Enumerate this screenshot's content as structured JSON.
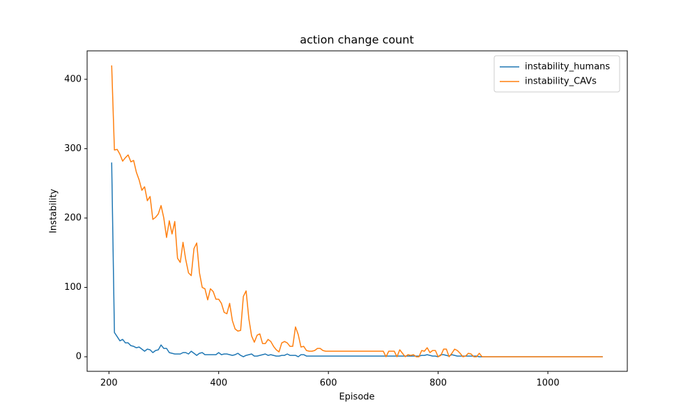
{
  "chart_data": {
    "type": "line",
    "title": "action change count",
    "x_label": "Episode",
    "y_label": "Instability",
    "x": [
      205,
      210,
      215,
      220,
      225,
      230,
      235,
      240,
      245,
      250,
      255,
      260,
      265,
      270,
      275,
      280,
      285,
      290,
      295,
      300,
      305,
      310,
      315,
      320,
      325,
      330,
      335,
      340,
      345,
      350,
      355,
      360,
      365,
      370,
      375,
      380,
      385,
      390,
      395,
      400,
      405,
      410,
      415,
      420,
      425,
      430,
      435,
      440,
      445,
      450,
      455,
      460,
      465,
      470,
      475,
      480,
      485,
      490,
      495,
      500,
      505,
      510,
      515,
      520,
      525,
      530,
      535,
      540,
      545,
      550,
      555,
      560,
      565,
      570,
      575,
      580,
      585,
      590,
      595,
      700,
      705,
      710,
      715,
      720,
      725,
      730,
      735,
      740,
      745,
      750,
      755,
      760,
      765,
      770,
      775,
      780,
      785,
      790,
      795,
      800,
      805,
      810,
      815,
      820,
      825,
      830,
      835,
      840,
      845,
      850,
      855,
      860,
      865,
      870,
      875,
      880,
      1100
    ],
    "series": [
      {
        "name": "instability_humans",
        "color": "#1f77b4",
        "values": [
          280,
          35,
          29,
          23,
          25,
          20,
          20,
          16,
          15,
          13,
          14,
          11,
          8,
          11,
          10,
          6,
          9,
          10,
          17,
          12,
          12,
          6,
          5,
          4,
          4,
          4,
          6,
          6,
          4,
          8,
          5,
          2,
          5,
          6,
          3,
          3,
          3,
          3,
          3,
          6,
          3,
          4,
          4,
          3,
          2,
          3,
          5,
          2,
          0,
          2,
          3,
          4,
          1,
          1,
          2,
          3,
          4,
          2,
          3,
          2,
          1,
          1,
          2,
          2,
          4,
          2,
          2,
          2,
          0,
          3,
          3,
          1,
          1,
          1,
          1,
          1,
          1,
          1,
          1,
          1,
          1,
          1,
          1,
          1,
          1,
          1,
          1,
          1,
          1,
          1,
          1,
          1,
          1,
          2,
          2,
          3,
          2,
          1,
          1,
          0,
          3,
          3,
          2,
          1,
          3,
          2,
          1,
          1,
          1,
          1,
          1,
          1,
          1,
          1,
          0,
          0,
          0
        ]
      },
      {
        "name": "instability_CAVs",
        "color": "#ff7f0e",
        "values": [
          420,
          298,
          299,
          292,
          282,
          287,
          291,
          281,
          283,
          266,
          255,
          240,
          245,
          225,
          231,
          198,
          201,
          206,
          218,
          200,
          172,
          196,
          177,
          195,
          142,
          136,
          165,
          140,
          121,
          117,
          156,
          164,
          121,
          100,
          98,
          82,
          98,
          94,
          83,
          83,
          77,
          64,
          62,
          77,
          52,
          40,
          37,
          38,
          87,
          95,
          55,
          30,
          21,
          31,
          33,
          19,
          19,
          25,
          22,
          15,
          10,
          7,
          20,
          22,
          20,
          15,
          15,
          43,
          32,
          14,
          15,
          9,
          8,
          8,
          9,
          12,
          12,
          9,
          8,
          8,
          0,
          8,
          8,
          8,
          0,
          10,
          5,
          0,
          3,
          2,
          3,
          0,
          0,
          9,
          8,
          13,
          6,
          9,
          9,
          0,
          2,
          11,
          11,
          0,
          5,
          11,
          9,
          5,
          0,
          1,
          5,
          4,
          0,
          0,
          5,
          0,
          0
        ]
      }
    ],
    "xlim": [
      160.25,
      1144.75
    ],
    "ylim": [
      -21,
      441
    ],
    "xticks": [
      200,
      400,
      600,
      800,
      1000
    ],
    "yticks": [
      0,
      100,
      200,
      300,
      400
    ],
    "legend": "upper right"
  }
}
